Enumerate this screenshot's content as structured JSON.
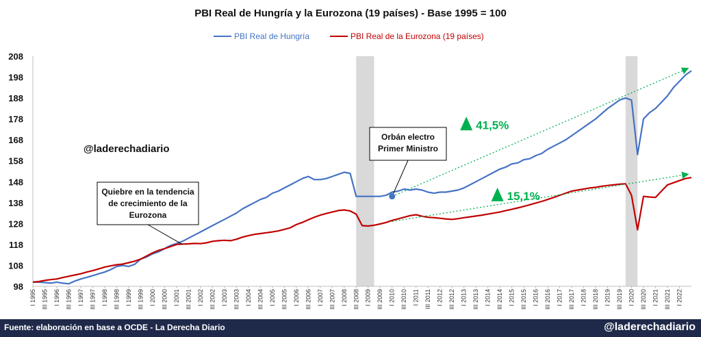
{
  "chart_data": {
    "type": "line",
    "title": "PBI Real de Hungría y la Eurozona (19 países) - Base 1995 = 100",
    "xlabel": "",
    "ylabel": "",
    "ylim": [
      98,
      208
    ],
    "yticks": [
      98,
      108,
      118,
      128,
      138,
      148,
      158,
      168,
      178,
      188,
      198,
      208
    ],
    "xtick_labels": [
      "I 1995",
      "III 1995",
      "I 1996",
      "III 1996",
      "I 1997",
      "III 1997",
      "I 1998",
      "III 1998",
      "I 1999",
      "III 1999",
      "I 2000",
      "III 2000",
      "I 2001",
      "III 2001",
      "I 2002",
      "III 2002",
      "I 2003",
      "III 2003",
      "I 2004",
      "III 2004",
      "I 2005",
      "III 2005",
      "I 2006",
      "III 2006",
      "I 2007",
      "III 2007",
      "I 2008",
      "III 2008",
      "I 2009",
      "III 2009",
      "I 2010",
      "III 2010",
      "I 2011",
      "III 2011",
      "I 2012",
      "III 2012",
      "I 2013",
      "III 2013",
      "I 2014",
      "III 2014",
      "I 2015",
      "III 2015",
      "I 2016",
      "III 2016",
      "I 2017",
      "III 2017",
      "I 2018",
      "III 2018",
      "I 2019",
      "III 2019",
      "I 2020",
      "III 2020",
      "I 2021",
      "III 2021",
      "I 2022"
    ],
    "x": [
      1995.0,
      1995.25,
      1995.5,
      1995.75,
      1996.0,
      1996.25,
      1996.5,
      1996.75,
      1997.0,
      1997.25,
      1997.5,
      1997.75,
      1998.0,
      1998.25,
      1998.5,
      1998.75,
      1999.0,
      1999.25,
      1999.5,
      1999.75,
      2000.0,
      2000.25,
      2000.5,
      2000.75,
      2001.0,
      2001.25,
      2001.5,
      2001.75,
      2002.0,
      2002.25,
      2002.5,
      2002.75,
      2003.0,
      2003.25,
      2003.5,
      2003.75,
      2004.0,
      2004.25,
      2004.5,
      2004.75,
      2005.0,
      2005.25,
      2005.5,
      2005.75,
      2006.0,
      2006.25,
      2006.5,
      2006.75,
      2007.0,
      2007.25,
      2007.5,
      2007.75,
      2008.0,
      2008.25,
      2008.5,
      2008.75,
      2009.0,
      2009.25,
      2009.5,
      2009.75,
      2010.0,
      2010.25,
      2010.5,
      2010.75,
      2011.0,
      2011.25,
      2011.5,
      2011.75,
      2012.0,
      2012.25,
      2012.5,
      2012.75,
      2013.0,
      2013.25,
      2013.5,
      2013.75,
      2014.0,
      2014.25,
      2014.5,
      2014.75,
      2015.0,
      2015.25,
      2015.5,
      2015.75,
      2016.0,
      2016.25,
      2016.5,
      2016.75,
      2017.0,
      2017.25,
      2017.5,
      2017.75,
      2018.0,
      2018.25,
      2018.5,
      2018.75,
      2019.0,
      2019.25,
      2019.5,
      2019.75,
      2020.0,
      2020.25,
      2020.5,
      2020.75,
      2021.0,
      2021.25,
      2021.5,
      2021.75,
      2022.0,
      2022.25,
      2022.5
    ],
    "series": [
      {
        "name": "PBI Real de Hungría",
        "color": "#4472C4",
        "values": [
          100,
          100,
          99.8,
          99.5,
          100,
          99.5,
          99.2,
          100.5,
          101.5,
          102.3,
          103.1,
          104,
          104.8,
          106,
          107.5,
          108,
          107.5,
          108.5,
          111,
          112,
          113.5,
          114.5,
          116,
          117.5,
          118.5,
          119.5,
          121,
          122.5,
          124,
          125.5,
          127,
          128.5,
          130,
          131.5,
          133,
          135,
          136.5,
          138,
          139.5,
          140.5,
          142.5,
          143.5,
          145,
          146.5,
          148,
          149.5,
          150.5,
          149,
          149,
          149.5,
          150.5,
          151.5,
          152.5,
          152,
          141,
          141,
          141,
          141,
          141,
          141.5,
          143,
          143.5,
          144.5,
          144,
          144.5,
          144,
          143,
          142.5,
          143,
          143,
          143.5,
          144,
          145,
          146.5,
          148,
          149.5,
          151,
          152.5,
          154,
          155,
          156.5,
          157,
          158.5,
          159,
          160.5,
          161.5,
          163.5,
          165,
          166.5,
          168,
          170,
          172,
          174,
          176,
          178,
          180.5,
          183,
          185,
          187,
          188,
          187,
          161,
          178,
          181,
          183,
          186,
          189,
          193,
          196,
          199,
          201
        ]
      },
      {
        "name": "PBI Real de la Eurozona (19 países)",
        "color": "#C00000",
        "values": [
          100,
          100.3,
          100.8,
          101.2,
          101.5,
          102.2,
          102.8,
          103.4,
          104,
          104.8,
          105.5,
          106.3,
          107.2,
          107.8,
          108.3,
          108.6,
          109.3,
          110,
          111,
          112.5,
          114,
          115.2,
          116,
          117,
          118,
          118.2,
          118.3,
          118.5,
          118.4,
          118.8,
          119.5,
          119.8,
          120,
          119.8,
          120.5,
          121.5,
          122.2,
          122.8,
          123.2,
          123.6,
          124,
          124.5,
          125.2,
          126,
          127.5,
          128.5,
          129.8,
          131,
          132,
          132.8,
          133.5,
          134.2,
          134.5,
          134,
          132.5,
          127,
          126.8,
          127.2,
          127.8,
          128.5,
          129.5,
          130.2,
          131,
          131.8,
          132.2,
          131.5,
          131,
          130.8,
          130.5,
          130.2,
          130,
          130.3,
          130.8,
          131.2,
          131.6,
          132,
          132.5,
          133,
          133.5,
          134.2,
          134.8,
          135.5,
          136.2,
          137,
          137.8,
          138.6,
          139.5,
          140.5,
          141.5,
          142.5,
          143.5,
          144,
          144.5,
          145,
          145.3,
          145.8,
          146.2,
          146.5,
          146.8,
          147,
          141.5,
          125,
          141,
          140.7,
          140.5,
          143.5,
          146.5,
          147.5,
          148.5,
          149.5,
          150
        ]
      }
    ],
    "recession_bands": [
      [
        2008.5,
        2009.25
      ],
      [
        2019.75,
        2020.25
      ]
    ],
    "legend_position": "top-center",
    "annotations": {
      "break_label": "Quiebre en la tendencia de crecimiento de la Eurozona",
      "break_x": 2001.25,
      "break_y": 118,
      "orban_label": "Orbán electro Primer Ministro",
      "orban_x": 2010.0,
      "orban_y": 141,
      "hu_growth": "41,5%",
      "ez_growth": "15,1%",
      "watermark": "@laderechadiario"
    },
    "trend_lines": [
      {
        "from": [
          2010.0,
          141
        ],
        "to": [
          2022.5,
          202
        ]
      },
      {
        "from": [
          2010.0,
          129
        ],
        "to": [
          2022.5,
          151.5
        ]
      }
    ]
  },
  "colors": {
    "growth": "#00B050",
    "band": "#d9d9d9",
    "footer_bg": "#1f2a4a"
  },
  "footer": {
    "source": "Fuente: elaboración en base a OCDE - La Derecha Diario",
    "handle": "@laderechadiario"
  }
}
